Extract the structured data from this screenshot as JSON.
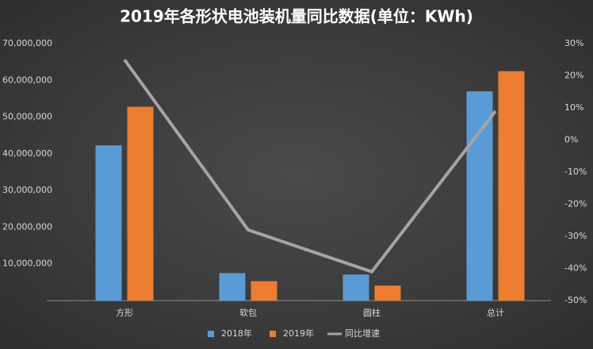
{
  "chart_data": {
    "type": "bar",
    "title": "2019年各形状电池装机量同比数据(单位：KWh)",
    "categories": [
      "方形",
      "软包",
      "圆柱",
      "总计"
    ],
    "series": [
      {
        "name": "2018年",
        "color": "#5b9bd5",
        "values": [
          42300000,
          7500000,
          7100000,
          57000000
        ]
      },
      {
        "name": "2019年",
        "color": "#ed7d31",
        "values": [
          52800000,
          5300000,
          4100000,
          62500000
        ]
      },
      {
        "name": "同比增速",
        "color": "#a5a5a5",
        "type": "line",
        "axis": "y2",
        "values": [
          25,
          -28,
          -41,
          9
        ]
      }
    ],
    "ylim": [
      0,
      70000000
    ],
    "yticks": [
      {
        "value": 0,
        "label": "-"
      },
      {
        "value": 10000000,
        "label": "10,000,000"
      },
      {
        "value": 20000000,
        "label": "20,000,000"
      },
      {
        "value": 30000000,
        "label": "30,000,000"
      },
      {
        "value": 40000000,
        "label": "40,000,000"
      },
      {
        "value": 50000000,
        "label": "50,000,000"
      },
      {
        "value": 60000000,
        "label": "60,000,000"
      },
      {
        "value": 70000000,
        "label": "70,000,000"
      }
    ],
    "y2lim": [
      -50,
      30
    ],
    "y2ticks": [
      {
        "value": -50,
        "label": "-50%"
      },
      {
        "value": -40,
        "label": "-40%"
      },
      {
        "value": -30,
        "label": "-30%"
      },
      {
        "value": -20,
        "label": "-20%"
      },
      {
        "value": -10,
        "label": "-10%"
      },
      {
        "value": 0,
        "label": "0%"
      },
      {
        "value": 10,
        "label": "10%"
      },
      {
        "value": 20,
        "label": "20%"
      },
      {
        "value": 30,
        "label": "30%"
      }
    ],
    "grid": false
  }
}
